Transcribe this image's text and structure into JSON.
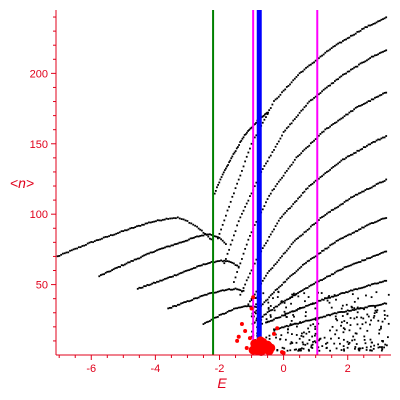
{
  "chart_data": {
    "type": "scatter",
    "title": "",
    "xlabel": "E",
    "ylabel": "<n>",
    "xlim": [
      -7.1,
      3.35
    ],
    "ylim": [
      0,
      245
    ],
    "grid": false,
    "colors": {
      "axis": "#e0001b",
      "points": "#000000",
      "highlight": "#ff0000",
      "green_line": "#008000",
      "blue_line": "#0000ff",
      "magenta_line": "#ff00ff"
    },
    "xticks": [
      {
        "value": -6,
        "label": "-6"
      },
      {
        "value": -4,
        "label": "-4"
      },
      {
        "value": -2,
        "label": "-2"
      },
      {
        "value": 0,
        "label": "0"
      },
      {
        "value": 2,
        "label": "2"
      }
    ],
    "yticks": [
      {
        "value": 50,
        "label": "50"
      },
      {
        "value": 100,
        "label": "100"
      },
      {
        "value": 150,
        "label": "150"
      },
      {
        "value": 200,
        "label": "200"
      }
    ],
    "vertical_lines": [
      {
        "x": -2.2,
        "color": "#008000",
        "width": 2
      },
      {
        "x": -0.95,
        "color": "#ff00ff",
        "width": 2
      },
      {
        "x": -0.76,
        "color": "#0000ff",
        "width": 5
      },
      {
        "x": 1.05,
        "color": "#ff00ff",
        "width": 2
      }
    ],
    "curves": [
      {
        "points": [
          [
            -7.05,
            70
          ],
          [
            -6.0,
            80
          ],
          [
            -5.0,
            88
          ],
          [
            -4.2,
            94
          ],
          [
            -3.6,
            97
          ],
          [
            -3.3,
            97.5
          ],
          [
            -3.0,
            95
          ],
          [
            -2.7,
            91
          ],
          [
            -2.5,
            87
          ],
          [
            -2.3,
            83
          ],
          [
            -2.15,
            80
          ]
        ],
        "spacing": 0.055
      },
      {
        "points": [
          [
            -5.75,
            56
          ],
          [
            -5.0,
            64
          ],
          [
            -4.0,
            74
          ],
          [
            -3.2,
            80
          ],
          [
            -2.7,
            84
          ],
          [
            -2.35,
            86
          ],
          [
            -2.05,
            84
          ],
          [
            -1.75,
            78
          ]
        ],
        "spacing": 0.05
      },
      {
        "points": [
          [
            -4.55,
            47
          ],
          [
            -3.8,
            53
          ],
          [
            -3.0,
            60
          ],
          [
            -2.4,
            65
          ],
          [
            -2.0,
            67
          ],
          [
            -1.65,
            66
          ],
          [
            -1.35,
            62
          ]
        ],
        "spacing": 0.05
      },
      {
        "points": [
          [
            -3.6,
            33
          ],
          [
            -3.0,
            38
          ],
          [
            -2.4,
            43
          ],
          [
            -1.9,
            46
          ],
          [
            -1.5,
            47
          ],
          [
            -1.2,
            45
          ]
        ],
        "spacing": 0.05
      },
      {
        "points": [
          [
            -2.5,
            22
          ],
          [
            -2.0,
            28
          ],
          [
            -1.5,
            33
          ],
          [
            -1.1,
            35
          ],
          [
            -0.8,
            34
          ]
        ],
        "spacing": 0.05
      },
      {
        "points": [
          [
            -2.15,
            115
          ],
          [
            -1.9,
            128
          ],
          [
            -1.6,
            141
          ],
          [
            -1.25,
            155
          ],
          [
            -0.75,
            168
          ],
          [
            -0.45,
            173
          ]
        ],
        "spacing": 0.035
      },
      {
        "points": [
          [
            -2.05,
            83
          ],
          [
            -1.6,
            112
          ],
          [
            -1.0,
            150
          ],
          [
            -0.3,
            180
          ],
          [
            0.5,
            200
          ],
          [
            1.5,
            218
          ],
          [
            2.5,
            232
          ],
          [
            3.25,
            240
          ]
        ],
        "spacing": 0.05
      },
      {
        "points": [
          [
            -1.85,
            65
          ],
          [
            -1.4,
            95
          ],
          [
            -0.7,
            130
          ],
          [
            0.0,
            158
          ],
          [
            0.8,
            180
          ],
          [
            1.8,
            198
          ],
          [
            2.7,
            211
          ],
          [
            3.25,
            217
          ]
        ],
        "spacing": 0.05
      },
      {
        "points": [
          [
            -1.55,
            52
          ],
          [
            -1.05,
            85
          ],
          [
            -0.4,
            115
          ],
          [
            0.4,
            140
          ],
          [
            1.3,
            160
          ],
          [
            2.3,
            176
          ],
          [
            3.25,
            187
          ]
        ],
        "spacing": 0.05
      },
      {
        "points": [
          [
            -1.35,
            43
          ],
          [
            -0.8,
            70
          ],
          [
            -0.1,
            97
          ],
          [
            0.8,
            120
          ],
          [
            1.8,
            138
          ],
          [
            2.7,
            150
          ],
          [
            3.25,
            156
          ]
        ],
        "spacing": 0.05
      },
      {
        "points": [
          [
            -1.1,
            36
          ],
          [
            -0.5,
            58
          ],
          [
            0.3,
            80
          ],
          [
            1.2,
            98
          ],
          [
            2.2,
            113
          ],
          [
            3.25,
            125
          ]
        ],
        "spacing": 0.05
      },
      {
        "points": [
          [
            -0.9,
            30
          ],
          [
            -0.2,
            47
          ],
          [
            0.6,
            64
          ],
          [
            1.6,
            80
          ],
          [
            2.6,
            92
          ],
          [
            3.25,
            98
          ]
        ],
        "spacing": 0.05
      },
      {
        "points": [
          [
            -0.75,
            26
          ],
          [
            0.0,
            38
          ],
          [
            0.9,
            50
          ],
          [
            1.9,
            62
          ],
          [
            2.8,
            70
          ],
          [
            3.25,
            74
          ]
        ],
        "spacing": 0.05
      },
      {
        "points": [
          [
            -0.55,
            23
          ],
          [
            0.3,
            31
          ],
          [
            1.3,
            40
          ],
          [
            2.3,
            47
          ],
          [
            3.25,
            53
          ]
        ],
        "spacing": 0.05
      },
      {
        "points": [
          [
            -0.3,
            18
          ],
          [
            0.7,
            24
          ],
          [
            1.7,
            30
          ],
          [
            2.6,
            34
          ],
          [
            3.25,
            37
          ]
        ],
        "spacing": 0.05
      }
    ],
    "noise_region": {
      "x": [
        -1.0,
        3.3
      ],
      "y": [
        3,
        45
      ],
      "count": 320
    },
    "highlight_cluster": {
      "center": [
        -0.68,
        5
      ],
      "points": [
        [
          -0.9,
          8
        ],
        [
          -0.75,
          6
        ],
        [
          -0.6,
          5
        ],
        [
          -0.5,
          7
        ],
        [
          -0.8,
          3
        ],
        [
          -0.65,
          9
        ],
        [
          -0.55,
          4
        ],
        [
          -0.7,
          2.5
        ],
        [
          -0.85,
          5
        ],
        [
          -0.45,
          3
        ],
        [
          -0.95,
          3.5
        ],
        [
          -0.62,
          7.5
        ],
        [
          -0.72,
          10
        ],
        [
          -0.4,
          5
        ]
      ],
      "scattered": [
        [
          -1.4,
          13
        ],
        [
          -1.2,
          17
        ],
        [
          -1.05,
          12
        ],
        [
          -1.0,
          33
        ],
        [
          -0.95,
          41
        ],
        [
          -1.15,
          5
        ],
        [
          -0.3,
          15
        ],
        [
          -0.2,
          19
        ],
        [
          -0.05,
          2
        ],
        [
          0.0,
          1.5
        ],
        [
          -1.3,
          22
        ],
        [
          -1.45,
          10
        ]
      ]
    }
  }
}
